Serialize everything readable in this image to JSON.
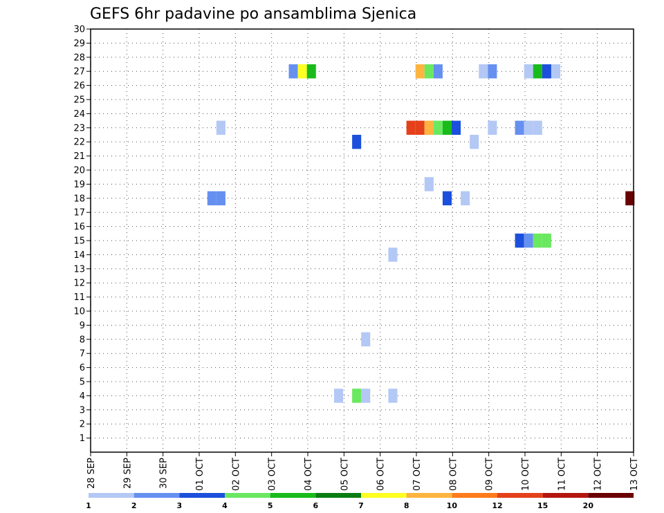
{
  "chart_data": {
    "type": "heatmap",
    "title": "GEFS 6hr padavine po ansamblima Sjenica",
    "xlabel": "",
    "ylabel": "",
    "x_tick_labels": [
      "28 SEP",
      "29 SEP",
      "30 SEP",
      "01 OCT",
      "02 OCT",
      "03 OCT",
      "04 OCT",
      "05 OCT",
      "06 OCT",
      "07 OCT",
      "08 OCT",
      "09 OCT",
      "10 OCT",
      "11 OCT",
      "12 OCT",
      "13 OCT"
    ],
    "xlim_days": [
      0,
      15
    ],
    "y_tick_labels": [
      "1",
      "2",
      "3",
      "4",
      "5",
      "6",
      "7",
      "8",
      "9",
      "10",
      "11",
      "12",
      "13",
      "14",
      "15",
      "16",
      "17",
      "18",
      "19",
      "20",
      "21",
      "22",
      "23",
      "24",
      "25",
      "26",
      "27",
      "28",
      "29",
      "30"
    ],
    "ylim": [
      0,
      30
    ],
    "grid": true,
    "legend": {
      "placement": "bottom",
      "colors": [
        "#b3c8f5",
        "#6690f0",
        "#1c50dc",
        "#6ae860",
        "#19bb1b",
        "#0a7d12",
        "#ffff22",
        "#ffb440",
        "#ff7a1b",
        "#e4411b",
        "#b3160f",
        "#6b0000"
      ],
      "labels": [
        "1",
        "2",
        "3",
        "4",
        "5",
        "6",
        "7",
        "8",
        "10",
        "12",
        "15",
        "20"
      ]
    },
    "cells": [
      {
        "m": 27,
        "d": 5.6,
        "c": 2
      },
      {
        "m": 27,
        "d": 5.85,
        "c": 7
      },
      {
        "m": 27,
        "d": 6.1,
        "c": 5
      },
      {
        "m": 27,
        "d": 9.1,
        "c": 8
      },
      {
        "m": 27,
        "d": 9.35,
        "c": 4
      },
      {
        "m": 27,
        "d": 9.6,
        "c": 2
      },
      {
        "m": 27,
        "d": 10.85,
        "c": 1
      },
      {
        "m": 27,
        "d": 11.1,
        "c": 2
      },
      {
        "m": 27,
        "d": 12.1,
        "c": 1
      },
      {
        "m": 27,
        "d": 12.35,
        "c": 5
      },
      {
        "m": 27,
        "d": 12.6,
        "c": 3
      },
      {
        "m": 27,
        "d": 12.85,
        "c": 1
      },
      {
        "m": 23,
        "d": 3.6,
        "c": 1
      },
      {
        "m": 23,
        "d": 8.85,
        "c": 10
      },
      {
        "m": 23,
        "d": 9.1,
        "c": 10
      },
      {
        "m": 23,
        "d": 9.35,
        "c": 8
      },
      {
        "m": 23,
        "d": 9.6,
        "c": 4
      },
      {
        "m": 23,
        "d": 9.85,
        "c": 5
      },
      {
        "m": 23,
        "d": 10.1,
        "c": 3
      },
      {
        "m": 23,
        "d": 11.1,
        "c": 1
      },
      {
        "m": 23,
        "d": 11.85,
        "c": 2
      },
      {
        "m": 23,
        "d": 12.1,
        "c": 1
      },
      {
        "m": 23,
        "d": 12.35,
        "c": 1
      },
      {
        "m": 22,
        "d": 7.35,
        "c": 3
      },
      {
        "m": 22,
        "d": 10.6,
        "c": 1
      },
      {
        "m": 19,
        "d": 9.35,
        "c": 1
      },
      {
        "m": 18,
        "d": 3.35,
        "c": 2
      },
      {
        "m": 18,
        "d": 3.6,
        "c": 2
      },
      {
        "m": 18,
        "d": 9.85,
        "c": 3
      },
      {
        "m": 18,
        "d": 10.35,
        "c": 1
      },
      {
        "m": 18,
        "d": 14.9,
        "c": 12
      },
      {
        "m": 15,
        "d": 11.85,
        "c": 3
      },
      {
        "m": 15,
        "d": 12.1,
        "c": 2
      },
      {
        "m": 15,
        "d": 12.35,
        "c": 4
      },
      {
        "m": 15,
        "d": 12.6,
        "c": 4
      },
      {
        "m": 14,
        "d": 8.35,
        "c": 1
      },
      {
        "m": 8,
        "d": 7.6,
        "c": 1
      },
      {
        "m": 4,
        "d": 6.85,
        "c": 1
      },
      {
        "m": 4,
        "d": 7.35,
        "c": 4
      },
      {
        "m": 4,
        "d": 7.6,
        "c": 1
      },
      {
        "m": 4,
        "d": 8.35,
        "c": 1
      }
    ]
  }
}
